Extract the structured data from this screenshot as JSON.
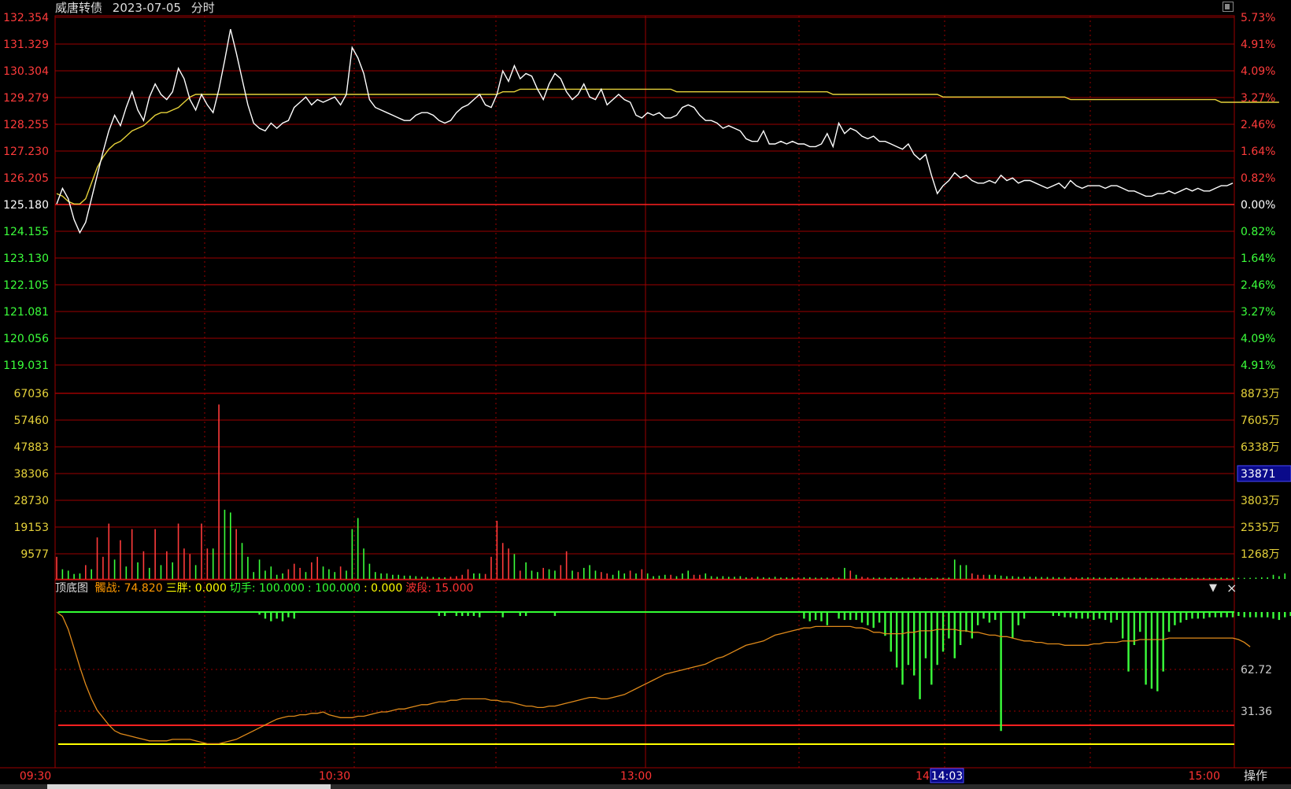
{
  "header": {
    "name": "威唐转债",
    "date": "2023-07-05",
    "mode": "分时"
  },
  "colors": {
    "up": "#ff3b3b",
    "down": "#3bff3b",
    "grid": "#9c0000",
    "price": "#ffffff",
    "avg": "#e6d23a",
    "osc": "#e08a1a",
    "yellow_line": "#ffff00",
    "green_line": "#33ff33",
    "red_line": "#ff2020",
    "crosshair_bg": "#0a0a8a"
  },
  "price_axis": {
    "left_labels": [
      "132.354",
      "131.329",
      "130.304",
      "129.279",
      "128.255",
      "127.230",
      "126.205",
      "125.180",
      "124.155",
      "123.130",
      "122.105",
      "121.081",
      "120.056",
      "119.031"
    ],
    "right_labels": [
      "5.73%",
      "4.91%",
      "4.09%",
      "3.27%",
      "2.46%",
      "1.64%",
      "0.82%",
      "0.00%",
      "0.82%",
      "1.64%",
      "2.46%",
      "3.27%",
      "4.09%",
      "4.91%"
    ],
    "base_index": 7
  },
  "volume_axis": {
    "left_labels": [
      "67036",
      "57460",
      "47883",
      "38306",
      "28730",
      "19153",
      "9577"
    ],
    "right_labels": [
      "8873万",
      "7605万",
      "6338万",
      "",
      "3803万",
      "2535万",
      "1268万"
    ],
    "crosshair_value": "33871"
  },
  "indicator": {
    "title": "顶底图",
    "items": [
      {
        "label": "髑战:",
        "value": "74.820",
        "color": "#ff9900"
      },
      {
        "label": "三胖:",
        "value": "0.000",
        "color": "#ffff00"
      },
      {
        "label": "切手:",
        "value": "100.000",
        "color": "#33ff33"
      },
      {
        "label": ":",
        "value": "100.000",
        "color": "#33ff33"
      },
      {
        "label": ":",
        "value": "0.000",
        "color": "#ffff00"
      },
      {
        "label": "波段:",
        "value": "15.000",
        "color": "#ff3333"
      }
    ],
    "right_labels": [
      "62.72",
      "31.36"
    ],
    "dropdown_icon": "▼",
    "close_icon": "×"
  },
  "time_axis": {
    "labels": [
      "09:30",
      "10:30",
      "13:00",
      "14",
      "15:00"
    ],
    "crosshair_time": "14:03"
  },
  "operate_label": "操作",
  "chart_data": {
    "type": "line",
    "title": "",
    "base_price": 125.18,
    "price_range": [
      119.031,
      132.354
    ],
    "series": [
      {
        "name": "",
        "values": [
          125.2,
          125.8,
          125.4,
          124.6,
          124.1,
          124.5,
          125.4,
          126.3,
          127.2,
          128.0,
          128.6,
          128.2,
          128.9,
          129.5,
          128.8,
          128.4,
          129.3,
          129.8,
          129.4,
          129.2,
          129.5,
          130.4,
          130.0,
          129.2,
          128.8,
          129.4,
          129.0,
          128.7,
          129.6,
          130.7,
          131.9,
          131.0,
          130.0,
          129.0,
          128.3,
          128.1,
          128.0,
          128.3,
          128.1,
          128.3,
          128.4,
          128.9,
          129.1,
          129.3,
          129.0,
          129.2,
          129.1,
          129.2,
          129.3,
          129.0,
          129.4,
          131.2,
          130.8,
          130.2,
          129.2,
          128.9,
          128.8,
          128.7,
          128.6,
          128.5,
          128.4,
          128.4,
          128.6,
          128.7,
          128.7,
          128.6,
          128.4,
          128.3,
          128.4,
          128.7,
          128.9,
          129.0,
          129.2,
          129.4,
          129.0,
          128.9,
          129.4,
          130.3,
          129.9,
          130.5,
          130.0,
          130.2,
          130.1,
          129.6,
          129.2,
          129.8,
          130.2,
          130.0,
          129.5,
          129.2,
          129.4,
          129.8,
          129.3,
          129.2,
          129.6,
          129.0,
          129.2,
          129.4,
          129.2,
          129.1,
          128.6,
          128.5,
          128.7,
          128.6,
          128.7,
          128.5,
          128.5,
          128.6,
          128.9,
          129.0,
          128.9,
          128.6,
          128.4,
          128.4,
          128.3,
          128.1,
          128.2,
          128.1,
          128.0,
          127.7,
          127.6,
          127.6,
          128.0,
          127.5,
          127.5,
          127.6,
          127.5,
          127.6,
          127.5,
          127.5,
          127.4,
          127.4,
          127.5,
          127.9,
          127.4,
          128.3,
          127.9,
          128.1,
          128.0,
          127.8,
          127.7,
          127.8,
          127.6,
          127.6,
          127.5,
          127.4,
          127.3,
          127.5,
          127.1,
          126.9,
          127.1,
          126.3,
          125.6,
          125.9,
          126.1,
          126.4,
          126.2,
          126.3,
          126.1,
          126.0,
          126.0,
          126.1,
          126.0,
          126.3,
          126.1,
          126.2,
          126.0,
          126.1,
          126.1,
          126.0,
          125.9,
          125.8,
          125.9,
          126.0,
          125.8,
          126.1,
          125.9,
          125.8,
          125.9,
          125.9,
          125.9,
          125.8,
          125.9,
          125.9,
          125.8,
          125.7,
          125.7,
          125.6,
          125.5,
          125.5,
          125.6,
          125.6,
          125.7,
          125.6,
          125.7,
          125.8,
          125.7,
          125.8,
          125.7,
          125.7,
          125.8,
          125.9,
          125.9,
          126.0
        ]
      },
      {
        "name": "",
        "values": [
          125.6,
          125.5,
          125.3,
          125.2,
          125.2,
          125.4,
          126.0,
          126.6,
          127.0,
          127.3,
          127.5,
          127.6,
          127.8,
          128.0,
          128.1,
          128.2,
          128.4,
          128.6,
          128.7,
          128.7,
          128.8,
          128.9,
          129.1,
          129.3,
          129.4,
          129.4,
          129.4,
          129.4,
          129.4,
          129.4,
          129.4,
          129.4,
          129.4,
          129.4,
          129.4,
          129.4,
          129.4,
          129.4,
          129.4,
          129.4,
          129.4,
          129.4,
          129.4,
          129.4,
          129.4,
          129.4,
          129.4,
          129.4,
          129.4,
          129.4,
          129.4,
          129.4,
          129.4,
          129.4,
          129.4,
          129.4,
          129.4,
          129.4,
          129.4,
          129.4,
          129.4,
          129.4,
          129.4,
          129.4,
          129.4,
          129.4,
          129.4,
          129.4,
          129.4,
          129.4,
          129.4,
          129.4,
          129.4,
          129.4,
          129.4,
          129.4,
          129.4,
          129.5,
          129.5,
          129.5,
          129.6,
          129.6,
          129.6,
          129.6,
          129.6,
          129.6,
          129.6,
          129.6,
          129.6,
          129.6,
          129.6,
          129.6,
          129.6,
          129.6,
          129.6,
          129.6,
          129.6,
          129.6,
          129.6,
          129.6,
          129.6,
          129.6,
          129.6,
          129.6,
          129.6,
          129.6,
          129.6,
          129.5,
          129.5,
          129.5,
          129.5,
          129.5,
          129.5,
          129.5,
          129.5,
          129.5,
          129.5,
          129.5,
          129.5,
          129.5,
          129.5,
          129.5,
          129.5,
          129.5,
          129.5,
          129.5,
          129.5,
          129.5,
          129.5,
          129.5,
          129.5,
          129.5,
          129.5,
          129.5,
          129.4,
          129.4,
          129.4,
          129.4,
          129.4,
          129.4,
          129.4,
          129.4,
          129.4,
          129.4,
          129.4,
          129.4,
          129.4,
          129.4,
          129.4,
          129.4,
          129.4,
          129.4,
          129.4,
          129.3,
          129.3,
          129.3,
          129.3,
          129.3,
          129.3,
          129.3,
          129.3,
          129.3,
          129.3,
          129.3,
          129.3,
          129.3,
          129.3,
          129.3,
          129.3,
          129.3,
          129.3,
          129.3,
          129.3,
          129.3,
          129.3,
          129.2,
          129.2,
          129.2,
          129.2,
          129.2,
          129.2,
          129.2,
          129.2,
          129.2,
          129.2,
          129.2,
          129.2,
          129.2,
          129.2,
          129.2,
          129.2,
          129.2,
          129.2,
          129.2,
          129.2,
          129.2,
          129.2,
          129.2,
          129.2,
          129.2,
          129.2,
          129.1,
          129.1,
          129.1,
          129.1,
          129.1,
          129.1,
          129.1,
          129.1,
          129.1,
          129.1,
          129.1
        ]
      }
    ],
    "volume_range": [
      0,
      67036
    ],
    "volume": [
      8000,
      3500,
      3000,
      1800,
      2000,
      5000,
      3500,
      15000,
      8000,
      20000,
      7000,
      14000,
      4500,
      18000,
      6000,
      10000,
      4000,
      18000,
      5000,
      10000,
      6000,
      20000,
      11000,
      9000,
      5000,
      20000,
      11000,
      11000,
      63000,
      25000,
      24000,
      18000,
      13000,
      8000,
      2500,
      7000,
      3000,
      4500,
      1500,
      2000,
      3500,
      5500,
      4000,
      2500,
      6000,
      8000,
      4500,
      3500,
      2500,
      4500,
      3000,
      18000,
      22000,
      11000,
      5500,
      2500,
      2000,
      2000,
      1500,
      1500,
      1200,
      1200,
      1000,
      800,
      800,
      700,
      600,
      600,
      800,
      1000,
      1500,
      3500,
      2000,
      2000,
      1800,
      8000,
      21000,
      13000,
      11000,
      9000,
      3000,
      6000,
      3000,
      2500,
      4000,
      3500,
      3000,
      5000,
      10000,
      3000,
      2500,
      4000,
      5000,
      3000,
      2500,
      2000,
      1500,
      3000,
      2000,
      3000,
      2000,
      3500,
      2000,
      1000,
      1200,
      1500,
      1500,
      1000,
      2000,
      3000,
      1500,
      1500,
      2000,
      1000,
      800,
      1000,
      800,
      800,
      1000,
      600,
      600,
      800,
      600,
      500,
      800,
      500,
      600,
      600,
      500,
      600,
      600,
      500,
      500,
      500,
      600,
      500,
      4000,
      3000,
      1500,
      800,
      600,
      500,
      500,
      500,
      500,
      500,
      500,
      500,
      500,
      500,
      400,
      400,
      500,
      400,
      500,
      7000,
      5000,
      5000,
      2000,
      1500,
      1500,
      1500,
      1500,
      1200,
      1000,
      1000,
      800,
      800,
      800,
      800,
      700,
      700,
      700,
      600,
      700,
      600,
      600,
      600,
      600,
      600,
      500,
      500,
      500,
      500,
      500,
      500,
      500,
      500,
      500,
      400,
      400,
      400,
      400,
      400,
      400,
      400,
      400,
      400,
      400,
      400,
      400,
      500,
      400,
      500,
      400,
      400,
      400,
      500,
      600,
      600,
      1500,
      1000,
      2000
    ],
    "volume_dir": [
      1,
      0,
      0,
      0,
      0,
      1,
      0,
      1,
      1,
      1,
      0,
      1,
      0,
      1,
      0,
      1,
      0,
      1,
      0,
      1,
      0,
      1,
      1,
      1,
      0,
      1,
      1,
      0,
      1,
      0,
      0,
      1,
      0,
      0,
      0,
      0,
      0,
      0,
      0,
      0,
      1,
      1,
      1,
      0,
      1,
      1,
      0,
      0,
      0,
      1,
      0,
      0,
      0,
      0,
      0,
      0,
      0,
      0,
      0,
      0,
      0,
      0,
      0,
      0,
      0,
      0,
      0,
      0,
      1,
      1,
      1,
      1,
      0,
      0,
      1,
      1,
      1,
      1,
      1,
      0,
      1,
      0,
      0,
      0,
      1,
      0,
      0,
      1,
      1,
      0,
      1,
      0,
      0,
      0,
      1,
      1,
      0,
      0,
      0,
      1,
      0,
      1,
      0,
      0,
      0,
      0,
      1,
      0,
      0,
      0,
      1,
      1,
      0,
      0,
      0,
      0,
      0,
      0,
      0,
      0,
      1,
      0,
      0,
      0,
      0,
      0,
      0,
      0,
      1,
      0,
      0,
      0,
      0,
      0,
      1,
      0,
      0,
      1,
      0,
      1,
      1,
      0,
      0,
      0,
      0,
      0,
      0,
      0,
      0,
      0,
      0,
      0,
      0,
      0,
      0,
      0,
      0,
      0,
      1,
      1,
      1,
      0,
      0,
      0,
      0,
      0,
      0,
      0,
      0,
      0,
      0,
      0,
      0,
      0,
      0,
      1,
      1,
      0,
      0,
      0,
      0,
      0,
      0,
      0,
      0,
      0,
      0,
      0,
      0,
      0,
      0,
      0,
      0,
      0,
      0,
      0,
      0,
      0,
      0,
      0,
      0,
      0,
      0,
      0,
      0,
      0,
      0,
      0,
      0,
      0,
      0,
      0,
      0
    ],
    "oscillator_range": [
      0,
      100
    ],
    "oscillator": [
      100,
      97,
      88,
      75,
      62,
      50,
      40,
      32,
      27,
      22,
      18,
      16,
      15,
      14,
      13,
      12,
      11,
      11,
      11,
      11,
      12,
      12,
      12,
      12,
      11,
      10,
      9,
      9,
      9,
      10,
      11,
      12,
      14,
      16,
      18,
      20,
      22,
      24,
      26,
      27,
      28,
      28,
      29,
      29,
      30,
      30,
      31,
      29,
      28,
      27,
      27,
      27,
      28,
      28,
      29,
      30,
      31,
      31,
      32,
      33,
      33,
      34,
      35,
      36,
      36,
      37,
      38,
      38,
      39,
      39,
      40,
      40,
      40,
      40,
      40,
      39,
      39,
      38,
      38,
      37,
      36,
      35,
      35,
      34,
      34,
      35,
      35,
      36,
      37,
      38,
      39,
      40,
      41,
      41,
      40,
      40,
      41,
      42,
      43,
      45,
      47,
      49,
      51,
      53,
      55,
      57,
      58,
      59,
      60,
      61,
      62,
      63,
      64,
      66,
      68,
      69,
      71,
      73,
      75,
      77,
      78,
      79,
      80,
      82,
      84,
      85,
      86,
      87,
      88,
      89,
      89,
      90,
      90,
      90,
      90,
      90,
      90,
      90,
      89,
      89,
      88,
      86,
      86,
      85,
      85,
      85,
      85,
      86,
      86,
      87,
      87,
      87,
      88,
      88,
      88,
      88,
      87,
      87,
      86,
      86,
      85,
      84,
      84,
      83,
      83,
      82,
      81,
      80,
      80,
      79,
      79,
      78,
      78,
      78,
      77,
      77,
      77,
      77,
      77,
      78,
      78,
      79,
      79,
      79,
      80,
      80,
      80,
      81,
      81,
      81,
      81,
      81,
      82,
      82,
      82,
      82,
      82,
      82,
      82,
      82,
      82,
      82,
      82,
      82,
      81,
      79,
      76
    ],
    "signal_bars": [
      0,
      0,
      0,
      0,
      0,
      0,
      0,
      0,
      0,
      0,
      0,
      0,
      0,
      0,
      0,
      0,
      0,
      0,
      0,
      0,
      0,
      0,
      0,
      0,
      0,
      0,
      0,
      0,
      0,
      0,
      0,
      0,
      0,
      0,
      0,
      2,
      5,
      7,
      5,
      7,
      4,
      5,
      0,
      0,
      0,
      0,
      0,
      0,
      0,
      0,
      0,
      0,
      0,
      0,
      0,
      0,
      0,
      0,
      0,
      0,
      0,
      0,
      0,
      0,
      0,
      0,
      3,
      3,
      0,
      3,
      3,
      3,
      3,
      4,
      0,
      0,
      0,
      4,
      0,
      0,
      3,
      3,
      0,
      0,
      0,
      0,
      3,
      0,
      0,
      0,
      0,
      0,
      0,
      0,
      0,
      0,
      0,
      0,
      0,
      0,
      0,
      0,
      0,
      0,
      0,
      0,
      0,
      0,
      0,
      0,
      0,
      0,
      0,
      0,
      0,
      0,
      0,
      0,
      0,
      0,
      0,
      0,
      0,
      0,
      0,
      0,
      0,
      0,
      0,
      5,
      7,
      6,
      7,
      10,
      0,
      5,
      6,
      6,
      6,
      8,
      10,
      12,
      8,
      18,
      30,
      42,
      55,
      40,
      48,
      66,
      35,
      55,
      40,
      30,
      20,
      35,
      25,
      15,
      20,
      10,
      5,
      8,
      6,
      90,
      0,
      20,
      10,
      5,
      0,
      0,
      0,
      0,
      3,
      3,
      4,
      4,
      5,
      5,
      5,
      6,
      5,
      6,
      8,
      6,
      20,
      45,
      25,
      15,
      55,
      58,
      60,
      45,
      15,
      10,
      8,
      6,
      5,
      5,
      5,
      4,
      4,
      4,
      4,
      4,
      3,
      4,
      4,
      4,
      4,
      4,
      5,
      6,
      4,
      3,
      3,
      3,
      4,
      4,
      3,
      3,
      3,
      3,
      4,
      4,
      3,
      3,
      3,
      4,
      3,
      3,
      3,
      4,
      4,
      3,
      3,
      3,
      0,
      0,
      0,
      0,
      0
    ]
  }
}
